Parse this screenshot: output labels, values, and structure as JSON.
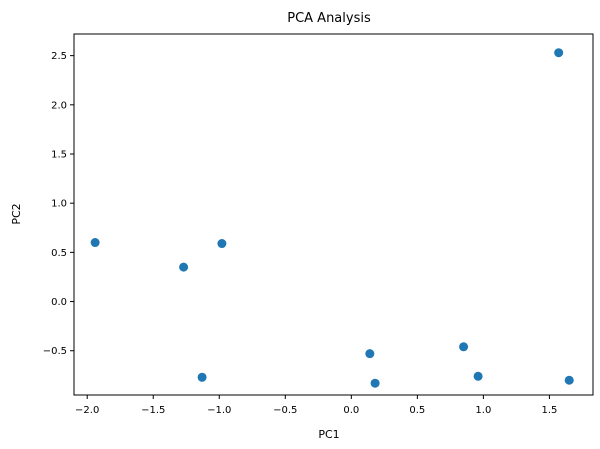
{
  "chart_data": {
    "type": "scatter",
    "title": "PCA Analysis",
    "xlabel": "PC1",
    "ylabel": "PC2",
    "xlim": [
      -2.1,
      1.83
    ],
    "ylim": [
      -0.95,
      2.72
    ],
    "x_ticks": [
      -2.0,
      -1.5,
      -1.0,
      -0.5,
      0.0,
      0.5,
      1.0,
      1.5
    ],
    "x_tick_labels": [
      "−2.0",
      "−1.5",
      "−1.0",
      "−0.5",
      "0.0",
      "0.5",
      "1.0",
      "1.5"
    ],
    "y_ticks": [
      -0.5,
      0.0,
      0.5,
      1.0,
      1.5,
      2.0,
      2.5
    ],
    "y_tick_labels": [
      "−0.5",
      "0.0",
      "0.5",
      "1.0",
      "1.5",
      "2.0",
      "2.5"
    ],
    "grid": false,
    "legend": false,
    "marker_color": "#1f77b4",
    "points": [
      {
        "x": -1.94,
        "y": 0.6
      },
      {
        "x": -1.27,
        "y": 0.35
      },
      {
        "x": -0.98,
        "y": 0.59
      },
      {
        "x": -1.13,
        "y": -0.77
      },
      {
        "x": 0.14,
        "y": -0.53
      },
      {
        "x": 0.18,
        "y": -0.83
      },
      {
        "x": 0.85,
        "y": -0.46
      },
      {
        "x": 0.96,
        "y": -0.76
      },
      {
        "x": 1.57,
        "y": 2.53
      },
      {
        "x": 1.65,
        "y": -0.8
      }
    ]
  }
}
